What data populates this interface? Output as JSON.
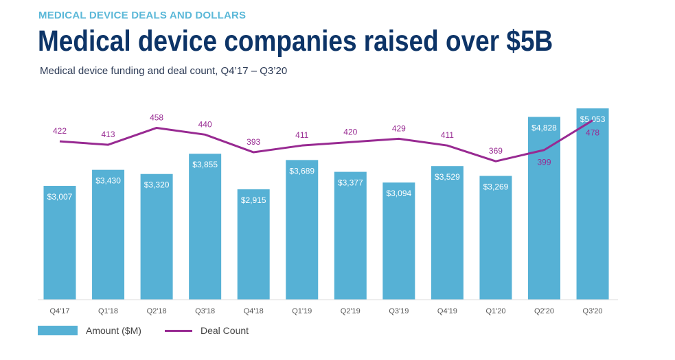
{
  "kicker": "MEDICAL DEVICE DEALS AND DOLLARS",
  "title": "Medical device companies raised over $5B",
  "subtitle": "Medical device funding and deal count, Q4’17 – Q3’20",
  "chart_data": {
    "type": "bar+line",
    "categories": [
      "Q4'17",
      "Q1'18",
      "Q2'18",
      "Q3'18",
      "Q4'18",
      "Q1'19",
      "Q2'19",
      "Q3'19",
      "Q4'19",
      "Q1'20",
      "Q2'20",
      "Q3'20"
    ],
    "series": [
      {
        "name": "Amount ($M)",
        "type": "bar",
        "color": "#56b1d5",
        "values": [
          3007,
          3430,
          3320,
          3855,
          2915,
          3689,
          3377,
          3094,
          3529,
          3269,
          4828,
          5053
        ],
        "labels": [
          "$3,007",
          "$3,430",
          "$3,320",
          "$3,855",
          "$2,915",
          "$3,689",
          "$3,377",
          "$3,094",
          "$3,529",
          "$3,269",
          "$4,828",
          "$5,053"
        ]
      },
      {
        "name": "Deal Count",
        "type": "line",
        "color": "#982a92",
        "values": [
          422,
          413,
          458,
          440,
          393,
          411,
          420,
          429,
          411,
          369,
          399,
          478
        ]
      }
    ],
    "grid": false,
    "legend": "bottom-left"
  }
}
